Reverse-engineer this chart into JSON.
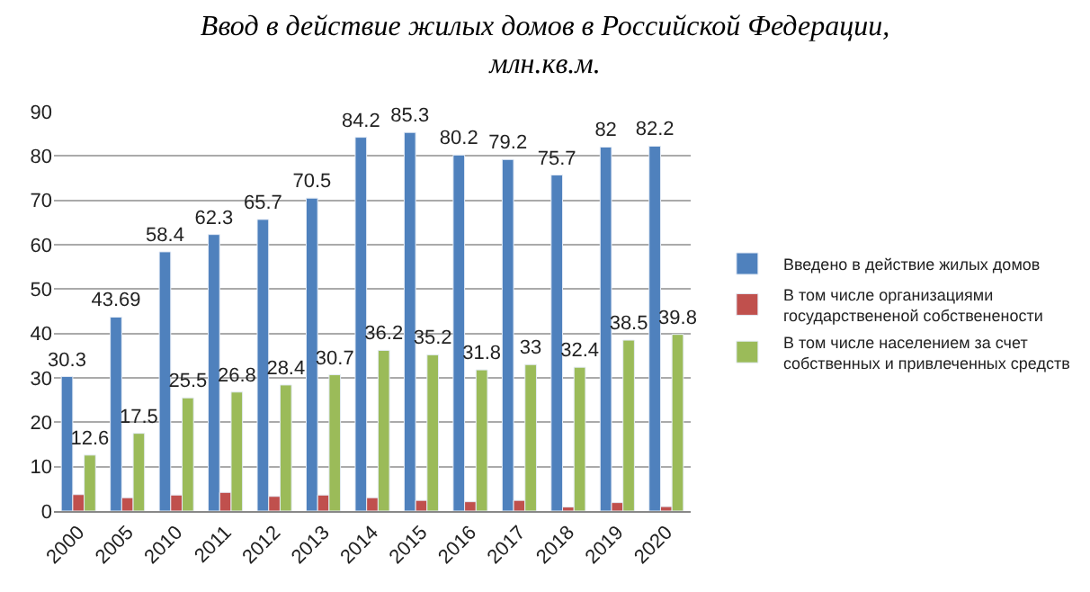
{
  "chart_data": {
    "type": "bar",
    "title": "Ввод в действие жилых домов в Российской Федерации, млн.кв.м.",
    "categories": [
      "2000",
      "2005",
      "2010",
      "2011",
      "2012",
      "2013",
      "2014",
      "2015",
      "2016",
      "2017",
      "2018",
      "2019",
      "2020"
    ],
    "series": [
      {
        "name": "Введено в действие жилых домов",
        "color": "#4f81bd",
        "values": [
          30.3,
          43.69,
          58.4,
          62.3,
          65.7,
          70.5,
          84.2,
          85.3,
          80.2,
          79.2,
          75.7,
          82,
          82.2
        ],
        "value_labels": [
          "30.3",
          "43.69",
          "58.4",
          "62.3",
          "65.7",
          "70.5",
          "84.2",
          "85.3",
          "80.2",
          "79.2",
          "75.7",
          "82",
          "82.2"
        ]
      },
      {
        "name": "В том числе организациями государствененой собственености",
        "color": "#c0504d",
        "values": [
          3.7,
          3.0,
          3.6,
          4.2,
          3.3,
          3.6,
          3.0,
          2.4,
          2.1,
          2.4,
          0.9,
          1.9,
          1.0
        ]
      },
      {
        "name": "В том числе населением за счет собственных и привлеченных средств",
        "color": "#9bbb59",
        "values": [
          12.6,
          17.5,
          25.5,
          26.8,
          28.4,
          30.7,
          36.2,
          35.2,
          31.8,
          33,
          32.4,
          38.5,
          39.8
        ],
        "value_labels": [
          "12.6",
          "17.5",
          "25.5",
          "26.8",
          "28.4",
          "30.7",
          "36.2",
          "35.2",
          "31.8",
          "33",
          "32.4",
          "38.5",
          "39.8"
        ]
      }
    ],
    "ylim": [
      0,
      90
    ],
    "yticks": [
      0,
      10,
      20,
      30,
      40,
      50,
      60,
      70,
      80,
      90
    ],
    "grid": "y",
    "legend": "right"
  }
}
